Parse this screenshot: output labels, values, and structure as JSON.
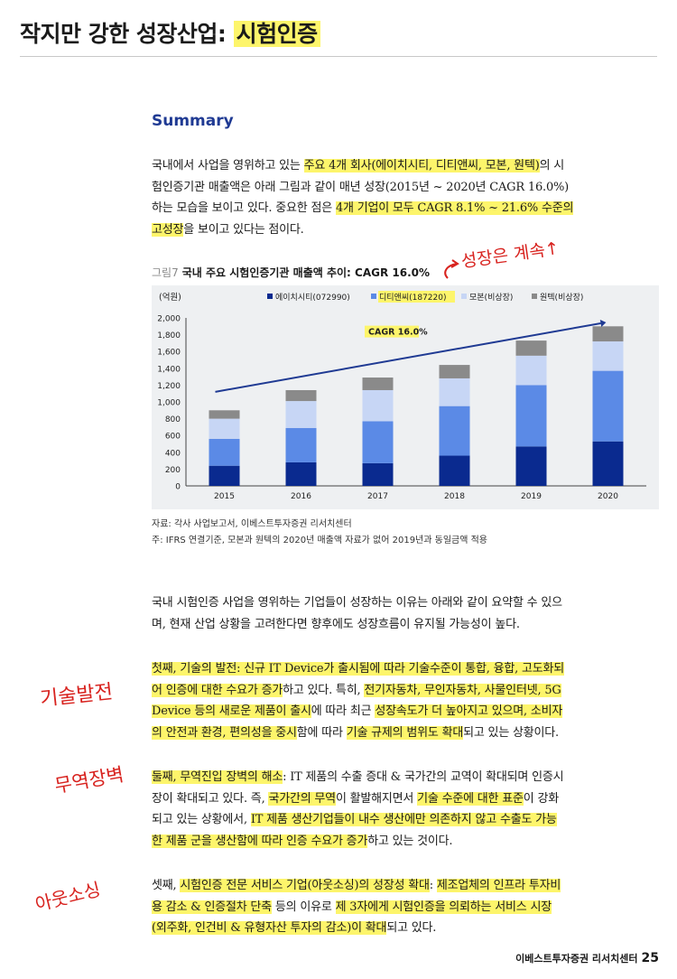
{
  "header": {
    "title_plain": "작지만 강한 성장산업: ",
    "title_highlight": "시험인증"
  },
  "summary": {
    "heading": "Summary",
    "p1": [
      [
        "국내에서 사업을 영위하고 있는 ",
        "주요 4개 회사(에이치시티, 디티앤씨, 모본, 원텍)",
        "의 시"
      ],
      [
        "험인증기관 매출액은 아래 그림과 같이 매년 성장(2015년 ~ 2020년 CAGR 16.0%)",
        "",
        ""
      ],
      [
        "하는 모습을 보이고 있다. 중요한 점은 ",
        "4개 기업이 모두 CAGR 8.1% ~ 21.6% 수준의",
        ""
      ],
      [
        "",
        "고성장",
        "을 보이고 있다는 점이다."
      ]
    ]
  },
  "figure": {
    "number": "그림7",
    "caption": "국내 주요 시험인증기관 매출액 추이: CAGR 16.0%",
    "source": "자료: 각사 사업보고서, 이베스트투자증권 리서치센터",
    "note": "주: IFRS 연결기준, 모본과 원텍의 2020년 매출액 자료가 없어 2019년과 동일금액 적용"
  },
  "chart_data": {
    "type": "bar",
    "stacked": true,
    "ylabel": "(억원)",
    "ylim": [
      0,
      2000
    ],
    "yticks": [
      "0",
      "200",
      "400",
      "600",
      "800",
      "1,000",
      "1,200",
      "1,400",
      "1,600",
      "1,800",
      "2,000"
    ],
    "categories": [
      "2015",
      "2016",
      "2017",
      "2018",
      "2019",
      "2020"
    ],
    "annotation": "CAGR 16.0%",
    "legend_position": "top",
    "series": [
      {
        "name": "에이치시티(072990)",
        "color": "#0a2a8f",
        "values": [
          240,
          280,
          270,
          360,
          470,
          530
        ]
      },
      {
        "name": "디티앤씨(187220)",
        "color": "#5b8ae6",
        "values": [
          320,
          410,
          500,
          590,
          730,
          840
        ]
      },
      {
        "name": "모본(비상장)",
        "color": "#c7d6f5",
        "values": [
          240,
          320,
          370,
          330,
          350,
          350
        ]
      },
      {
        "name": "원텍(비상장)",
        "color": "#8a8a8a",
        "values": [
          100,
          130,
          150,
          160,
          180,
          180
        ]
      }
    ]
  },
  "body": {
    "intro": [
      "국내 시험인증 사업을 영위하는 기업들이 성장하는 이유는 아래와 같이 요약할 수 있으",
      "며, 현재 산업 상황을 고려한다면 향후에도 성장흐름이 유지될 가능성이 높다."
    ],
    "reason1": [
      [
        [
          "첫째, 기술의 발전: 신규 IT Device가 출시됨에 따라 기술수준이 통합, 융합, 고도화되",
          true
        ]
      ],
      [
        [
          "어 인증에 대한 수요가 증가",
          true
        ],
        [
          "하고 있다. 특히, ",
          false
        ],
        [
          "전기자동차, 무인자동차, 사물인터넷, 5G",
          true
        ]
      ],
      [
        [
          "Device 등의 새로운 제품이 출시",
          true
        ],
        [
          "에 따라 최근 ",
          false
        ],
        [
          "성장속도가 더 높아지고 있으며, 소비자",
          true
        ]
      ],
      [
        [
          "의 안전과 환경, 편의성을 중시",
          true
        ],
        [
          "함에 따라 ",
          false
        ],
        [
          "기술 규제의 범위도 확대",
          true
        ],
        [
          "되고 있는 상황이다.",
          false
        ]
      ]
    ],
    "reason2": [
      [
        [
          "둘째, 무역진입 장벽의 해소",
          true
        ],
        [
          ": IT 제품의 수출 증대 & 국가간의 교역이 확대되며 인증시",
          false
        ]
      ],
      [
        [
          "장이 확대되고 있다. 즉, ",
          false
        ],
        [
          "국가간의 무역",
          true
        ],
        [
          "이 활발해지면서 ",
          false
        ],
        [
          "기술 수준에 대한 표준",
          true
        ],
        [
          "이 강화",
          false
        ]
      ],
      [
        [
          "되고 있는 상황에서, ",
          false
        ],
        [
          "IT 제품 생산기업들이 내수 생산에만 의존하지 않고 수출도 가능",
          true
        ]
      ],
      [
        [
          "한 제품 군을 생산함에 따라 인증 수요가 증가",
          true
        ],
        [
          "하고 있는 것이다.",
          false
        ]
      ]
    ],
    "reason3": [
      [
        [
          "셋째, ",
          false
        ],
        [
          "시험인증 전문 서비스 기업(아웃소싱)의 성장성 확대",
          true
        ],
        [
          ": ",
          false
        ],
        [
          "제조업체의 인프라 투자비",
          true
        ]
      ],
      [
        [
          "용 감소 & 인증절차 단축",
          true
        ],
        [
          " 등의 이유로 ",
          false
        ],
        [
          "제 3자에게 시험인증을 의뢰하는 서비스 시장",
          true
        ]
      ],
      [
        [
          "(외주화, 인건비 & 유형자산 투자의 감소)이 확대",
          true
        ],
        [
          "되고 있다.",
          false
        ]
      ]
    ]
  },
  "handwriting": {
    "note_top": "성장은 계속↑",
    "note_tech": "기술발전",
    "note_trade": "무역장벽",
    "note_outsourcing": "아웃소싱"
  },
  "footer": {
    "publisher": "이베스트투자증권 리서치센터",
    "page": "25"
  }
}
